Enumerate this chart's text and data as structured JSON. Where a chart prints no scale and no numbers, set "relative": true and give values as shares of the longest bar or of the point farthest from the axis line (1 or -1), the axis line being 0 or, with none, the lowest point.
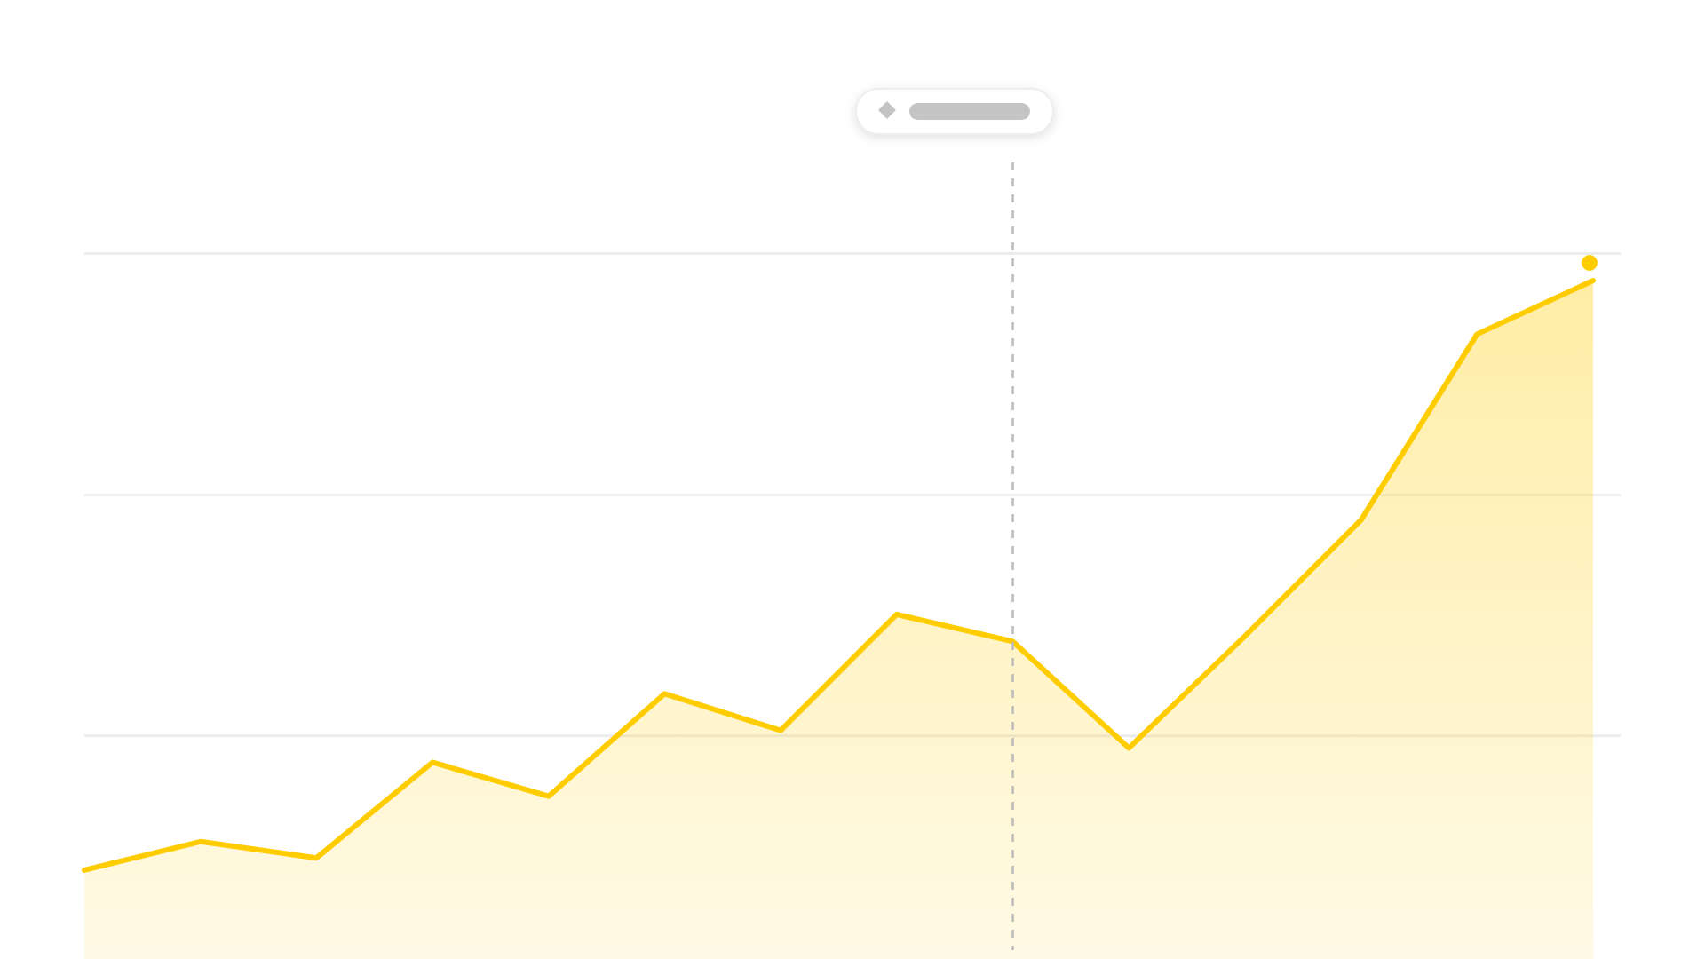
{
  "chart_data": {
    "type": "area",
    "relative": true,
    "categories": [
      null,
      null,
      null,
      null,
      null,
      null,
      null,
      null,
      null,
      null,
      null,
      null,
      null,
      null
    ],
    "series": [
      {
        "color": "#ffcc00",
        "values": [
          0.131,
          0.173,
          0.149,
          0.29,
          0.24,
          0.391,
          0.337,
          0.508,
          0.468,
          0.311,
          0.476,
          0.647,
          0.921,
          1
        ]
      }
    ],
    "ref_lines": [
      {
        "axis": "y",
        "value": 1.04,
        "color": "#ececec"
      },
      {
        "axis": "y",
        "value": 0.684,
        "color": "#ececec"
      },
      {
        "axis": "y",
        "value": 0.329,
        "color": "#ececec"
      }
    ]
  }
}
